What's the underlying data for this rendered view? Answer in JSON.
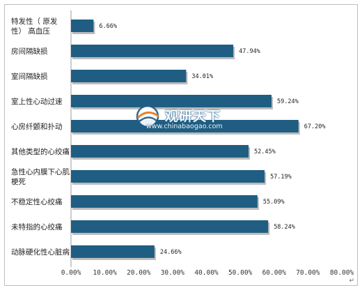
{
  "chart_data": {
    "type": "bar",
    "orientation": "horizontal",
    "categories": [
      "特发性（原发性）高血压",
      "房间隔缺损",
      "室间隔缺损",
      "室上性心动过速",
      "心房纤颤和扑动",
      "其他类型的心绞痛",
      "急性心内膜下心肌梗死",
      "不稳定性心绞痛",
      "未特指的心绞痛",
      "动脉硬化性心脏病"
    ],
    "category_lines": [
      [
        "特发性（  原发",
        "性） 高血压"
      ],
      [
        "房间隔缺损"
      ],
      [
        "室间隔缺损"
      ],
      [
        "室上性心动过速"
      ],
      [
        "心房纤颤和扑动"
      ],
      [
        "其他类型的心绞痛"
      ],
      [
        "急性心内膜下心肌",
        "梗死"
      ],
      [
        "不稳定性心绞痛"
      ],
      [
        "未特指的心绞痛"
      ],
      [
        "动脉硬化性心脏病"
      ]
    ],
    "values": [
      6.66,
      47.94,
      34.01,
      59.24,
      67.2,
      52.45,
      57.19,
      55.09,
      58.24,
      24.66
    ],
    "value_labels": [
      "6.66%",
      "47.94%",
      "34.01%",
      "59.24%",
      "67.20%",
      "52.45%",
      "57.19%",
      "55.09%",
      "58.24%",
      "24.66%"
    ],
    "xlim": [
      0,
      80
    ],
    "ticks": [
      0,
      10,
      20,
      30,
      40,
      50,
      60,
      70,
      80
    ],
    "tick_labels": [
      "0.00%",
      "10.00%",
      "20.00%",
      "30.00%",
      "40.00%",
      "50.00%",
      "60.00%",
      "70.00%",
      "80.00%"
    ],
    "bar_color": "#1f5e82",
    "shadow_color": "#bcbcbc",
    "grid": false,
    "legend": "none"
  },
  "watermark": {
    "text": "观研天下",
    "url": "www.chinabaogao.com",
    "color": "#1f5d8c"
  },
  "corner_mark": "↵"
}
